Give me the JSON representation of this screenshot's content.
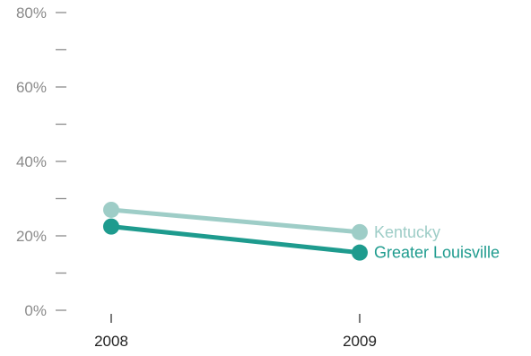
{
  "chart_data": {
    "type": "line",
    "title": "",
    "xlabel": "",
    "ylabel": "",
    "categories": [
      "2008",
      "2009"
    ],
    "ylim": [
      0,
      80
    ],
    "y_ticks_labeled": [
      "0%",
      "20%",
      "40%",
      "60%",
      "80%"
    ],
    "y_ticks_labeled_values": [
      0,
      20,
      40,
      60,
      80
    ],
    "y_ticks_minor_values": [
      10,
      30,
      50,
      70
    ],
    "grid": false,
    "legend": "end-of-line labels",
    "series": [
      {
        "name": "Kentucky",
        "values": [
          27,
          21
        ],
        "color": "#9ecdc7"
      },
      {
        "name": "Greater Louisville",
        "values": [
          22.5,
          15.5
        ],
        "color": "#1e9b8e"
      }
    ],
    "axis_color": "#8c8c8c"
  }
}
